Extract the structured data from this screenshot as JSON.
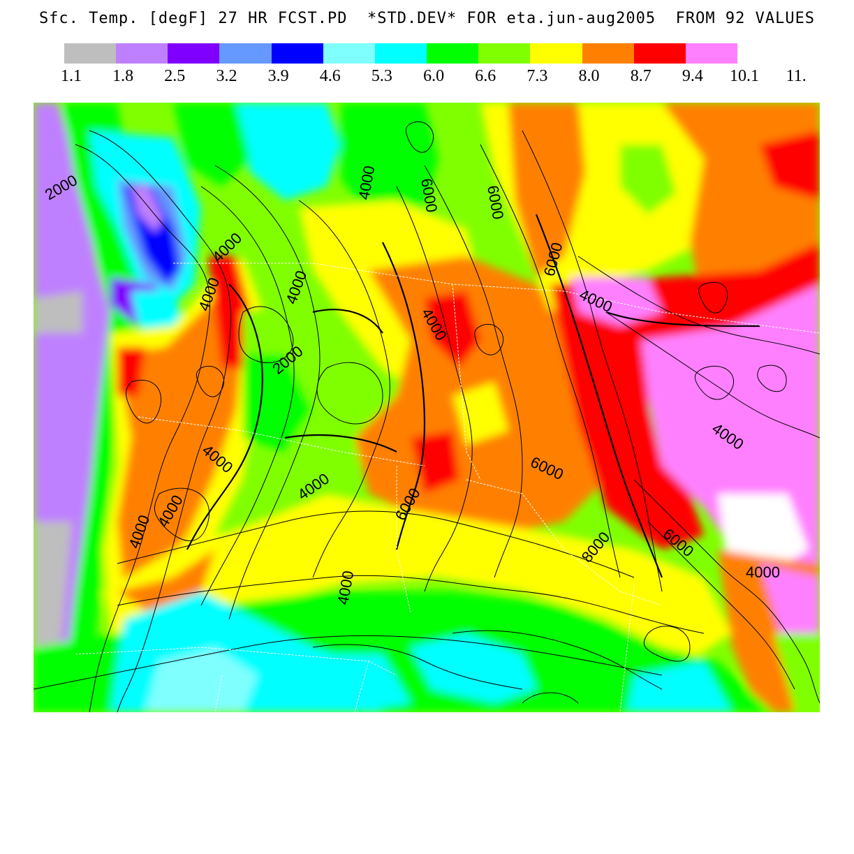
{
  "title": "Sfc. Temp. [degF] 27 HR FCST.PD  *STD.DEV* FOR eta.jun-aug2005  FROM 92 VALUES",
  "colorbar": {
    "colors": [
      "#bebebe",
      "#bf80ff",
      "#8000ff",
      "#6699ff",
      "#0000ff",
      "#80ffff",
      "#00ffff",
      "#00ff00",
      "#80ff00",
      "#ffff00",
      "#ff8000",
      "#ff0000",
      "#ff80ff"
    ],
    "tick_labels": [
      "1.1",
      "1.8",
      "2.5",
      "3.2",
      "3.9",
      "4.6",
      "5.3",
      "6.0",
      "6.6",
      "7.3",
      "8.0",
      "8.7",
      "9.4",
      "10.1",
      "11."
    ]
  },
  "map": {
    "contour_labels": [
      "2000",
      "4000",
      "4000",
      "4000",
      "4000",
      "6000",
      "6000",
      "4000",
      "2000",
      "4000",
      "4000",
      "4000",
      "6000",
      "6000",
      "4000",
      "4000",
      "6000",
      "8000",
      "4000",
      "6000",
      "4000",
      "4000"
    ]
  }
}
